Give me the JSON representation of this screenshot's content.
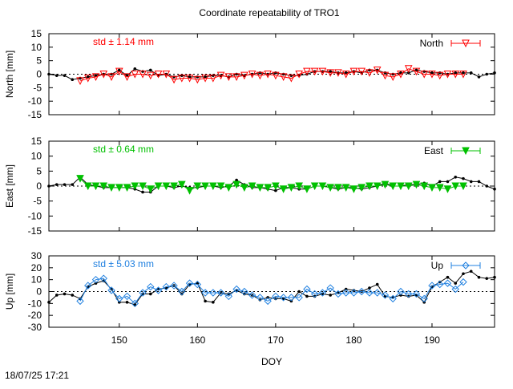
{
  "title": "Coordinate repeatability of TRO1",
  "footer_timestamp": "18/07/25 17:21",
  "chart_data": [
    {
      "type": "line",
      "panel": "north",
      "ylabel": "North [mm]",
      "ylim": [
        -15,
        15
      ],
      "yticks": [
        -15,
        -10,
        -5,
        0,
        5,
        10,
        15
      ],
      "std_label": "std ± 1.14 mm",
      "legend_label": "North",
      "color": "#ff0000",
      "marker": "triangle-down-open",
      "series": [
        {
          "name": "reference",
          "color": "#000000",
          "x": [
            141,
            142,
            143,
            144,
            145,
            146,
            147,
            148,
            149,
            150,
            151,
            152,
            153,
            154,
            155,
            156,
            157,
            158,
            159,
            160,
            161,
            162,
            163,
            164,
            165,
            166,
            167,
            168,
            169,
            170,
            171,
            172,
            173,
            174,
            175,
            176,
            177,
            178,
            179,
            180,
            181,
            182,
            183,
            184,
            185,
            186,
            187,
            188,
            189,
            190,
            191,
            192,
            193,
            194,
            195,
            196,
            197,
            198
          ],
          "y": [
            0,
            -0.5,
            -0.5,
            -2,
            -1.5,
            -1,
            -0.5,
            0,
            0,
            1.5,
            -0.5,
            2,
            1,
            1.5,
            -0.5,
            0,
            -1,
            -0.5,
            -1,
            -1,
            -1,
            -0.5,
            -0.5,
            -1,
            0,
            -0.5,
            0,
            0.5,
            0,
            0.5,
            0,
            -0.5,
            -0.5,
            0,
            1,
            1,
            1,
            0.5,
            0.5,
            1,
            0.5,
            1.5,
            1.5,
            0.5,
            0,
            0.5,
            0.5,
            1.5,
            1,
            0.5,
            0.5,
            0,
            0.5,
            0.5,
            0.5,
            -1,
            0,
            0.5
          ]
        },
        {
          "name": "North",
          "color": "#ff0000",
          "x": [
            145,
            146,
            147,
            148,
            149,
            150,
            151,
            152,
            153,
            154,
            155,
            156,
            157,
            158,
            159,
            160,
            161,
            162,
            163,
            164,
            165,
            166,
            167,
            168,
            169,
            170,
            171,
            172,
            173,
            174,
            175,
            176,
            177,
            178,
            179,
            180,
            181,
            182,
            183,
            184,
            185,
            186,
            187,
            188,
            189,
            190,
            191,
            192,
            193,
            194
          ],
          "y": [
            -2.5,
            -1.5,
            -1,
            0,
            -1,
            1,
            -1,
            0,
            0,
            -0.5,
            0,
            0,
            -2,
            -1.5,
            -1.5,
            -2,
            -1.5,
            -1.5,
            -0.5,
            -1,
            -1,
            -0.5,
            0,
            -0.5,
            0,
            -0.5,
            -1,
            -1.5,
            0,
            1,
            1,
            1,
            0.5,
            0.5,
            0,
            1,
            1,
            0.5,
            1.5,
            -0.5,
            -1,
            0,
            2,
            1,
            0,
            0,
            -0.5,
            0,
            0,
            0
          ]
        }
      ]
    },
    {
      "type": "line",
      "panel": "east",
      "ylabel": "East [mm]",
      "ylim": [
        -15,
        15
      ],
      "yticks": [
        -15,
        -10,
        -5,
        0,
        5,
        10,
        15
      ],
      "std_label": "std ± 0.64 mm",
      "legend_label": "East",
      "color": "#00c000",
      "marker": "triangle-down-filled",
      "series": [
        {
          "name": "reference",
          "color": "#000000",
          "x": [
            141,
            142,
            143,
            144,
            145,
            146,
            147,
            148,
            149,
            150,
            151,
            152,
            153,
            154,
            155,
            156,
            157,
            158,
            159,
            160,
            161,
            162,
            163,
            164,
            165,
            166,
            167,
            168,
            169,
            170,
            171,
            172,
            173,
            174,
            175,
            176,
            177,
            178,
            179,
            180,
            181,
            182,
            183,
            184,
            185,
            186,
            187,
            188,
            189,
            190,
            191,
            192,
            193,
            194,
            195,
            196,
            197,
            198
          ],
          "y": [
            0,
            0.5,
            0.5,
            0.5,
            3,
            0.5,
            0,
            -0.5,
            -0.5,
            -0.5,
            -0.5,
            -1,
            -2,
            -2,
            0,
            0,
            -0.5,
            0,
            -0.5,
            -0.5,
            0,
            0,
            -0.5,
            0,
            2,
            0.5,
            -0.5,
            -0.5,
            -1,
            -1.5,
            -0.5,
            -0.5,
            -1,
            -1,
            0,
            0,
            -0.5,
            -1,
            -0.5,
            -0.5,
            -1,
            -0.5,
            0,
            1,
            0,
            0,
            0.5,
            0.5,
            1,
            0,
            1.5,
            1.5,
            3,
            2.5,
            1.5,
            1.5,
            0,
            -1
          ]
        },
        {
          "name": "East",
          "color": "#00c000",
          "x": [
            145,
            146,
            147,
            148,
            149,
            150,
            151,
            152,
            153,
            154,
            155,
            156,
            157,
            158,
            159,
            160,
            161,
            162,
            163,
            164,
            165,
            166,
            167,
            168,
            169,
            170,
            171,
            172,
            173,
            174,
            175,
            176,
            177,
            178,
            179,
            180,
            181,
            182,
            183,
            184,
            185,
            186,
            187,
            188,
            189,
            190,
            191,
            192,
            193,
            194
          ],
          "y": [
            2.5,
            0,
            0,
            0,
            -0.5,
            -0.5,
            -0.5,
            0,
            0,
            -1,
            0,
            0,
            0,
            0.5,
            -1.5,
            0,
            0,
            0,
            0,
            -0.5,
            0.5,
            -0.5,
            0,
            -0.5,
            -0.5,
            0,
            -1,
            -0.5,
            0,
            -1,
            0,
            0,
            -0.5,
            -0.5,
            -0.5,
            -1,
            -0.5,
            0,
            0,
            0.5,
            0,
            0,
            0,
            0.5,
            0,
            -0.5,
            -0.5,
            -1,
            0,
            0
          ]
        }
      ]
    },
    {
      "type": "line",
      "panel": "up",
      "ylabel": "Up [mm]",
      "ylim": [
        -30,
        30
      ],
      "yticks": [
        -30,
        -20,
        -10,
        0,
        10,
        20,
        30
      ],
      "std_label": "std ± 5.03 mm",
      "legend_label": "Up",
      "color": "#2080e0",
      "marker": "diamond-open",
      "xlabel": "DOY",
      "xlim": [
        141,
        198
      ],
      "xticks": [
        150,
        160,
        170,
        180,
        190
      ],
      "series": [
        {
          "name": "reference",
          "color": "#000000",
          "x": [
            141,
            142,
            143,
            144,
            145,
            146,
            147,
            148,
            149,
            150,
            151,
            152,
            153,
            154,
            155,
            156,
            157,
            158,
            159,
            160,
            161,
            162,
            163,
            164,
            165,
            166,
            167,
            168,
            169,
            170,
            171,
            172,
            173,
            174,
            175,
            176,
            177,
            178,
            179,
            180,
            181,
            182,
            183,
            184,
            185,
            186,
            187,
            188,
            189,
            190,
            191,
            192,
            193,
            194,
            195,
            196,
            197,
            198
          ],
          "y": [
            -9,
            -3,
            -2,
            -3,
            -6,
            4,
            7,
            9,
            2,
            -9,
            -9,
            -11,
            -2,
            -2,
            2,
            3,
            5,
            -2,
            6,
            7,
            -8,
            -9,
            -1,
            -2,
            1,
            -2,
            -3,
            -7,
            -5,
            -6,
            -6,
            -8,
            0,
            -4,
            -4,
            -2,
            -3,
            -1,
            2,
            1,
            0,
            3,
            6,
            -4,
            -5,
            -3,
            -4,
            -3,
            -9,
            4,
            8,
            12,
            7,
            15,
            17,
            12,
            11,
            12
          ]
        },
        {
          "name": "Up",
          "color": "#2080e0",
          "x": [
            145,
            146,
            147,
            148,
            149,
            150,
            151,
            152,
            153,
            154,
            155,
            156,
            157,
            158,
            159,
            160,
            161,
            162,
            163,
            164,
            165,
            166,
            167,
            168,
            169,
            170,
            171,
            172,
            173,
            174,
            175,
            176,
            177,
            178,
            179,
            180,
            181,
            182,
            183,
            184,
            185,
            186,
            187,
            188,
            189,
            190,
            191,
            192,
            193,
            194
          ],
          "y": [
            -8,
            5,
            10,
            11,
            1,
            -6,
            -4,
            -10,
            -1,
            4,
            1,
            4,
            5,
            0,
            7,
            6,
            -1,
            -1,
            -1,
            -4,
            2,
            0,
            -3,
            -5,
            -8,
            -4,
            -5,
            -5,
            -5,
            2,
            -2,
            -1,
            3,
            -2,
            -1,
            -1,
            0,
            -1,
            -1,
            -3,
            -6,
            0,
            -2,
            -2,
            -6,
            5,
            6,
            7,
            2,
            8
          ]
        }
      ]
    }
  ]
}
